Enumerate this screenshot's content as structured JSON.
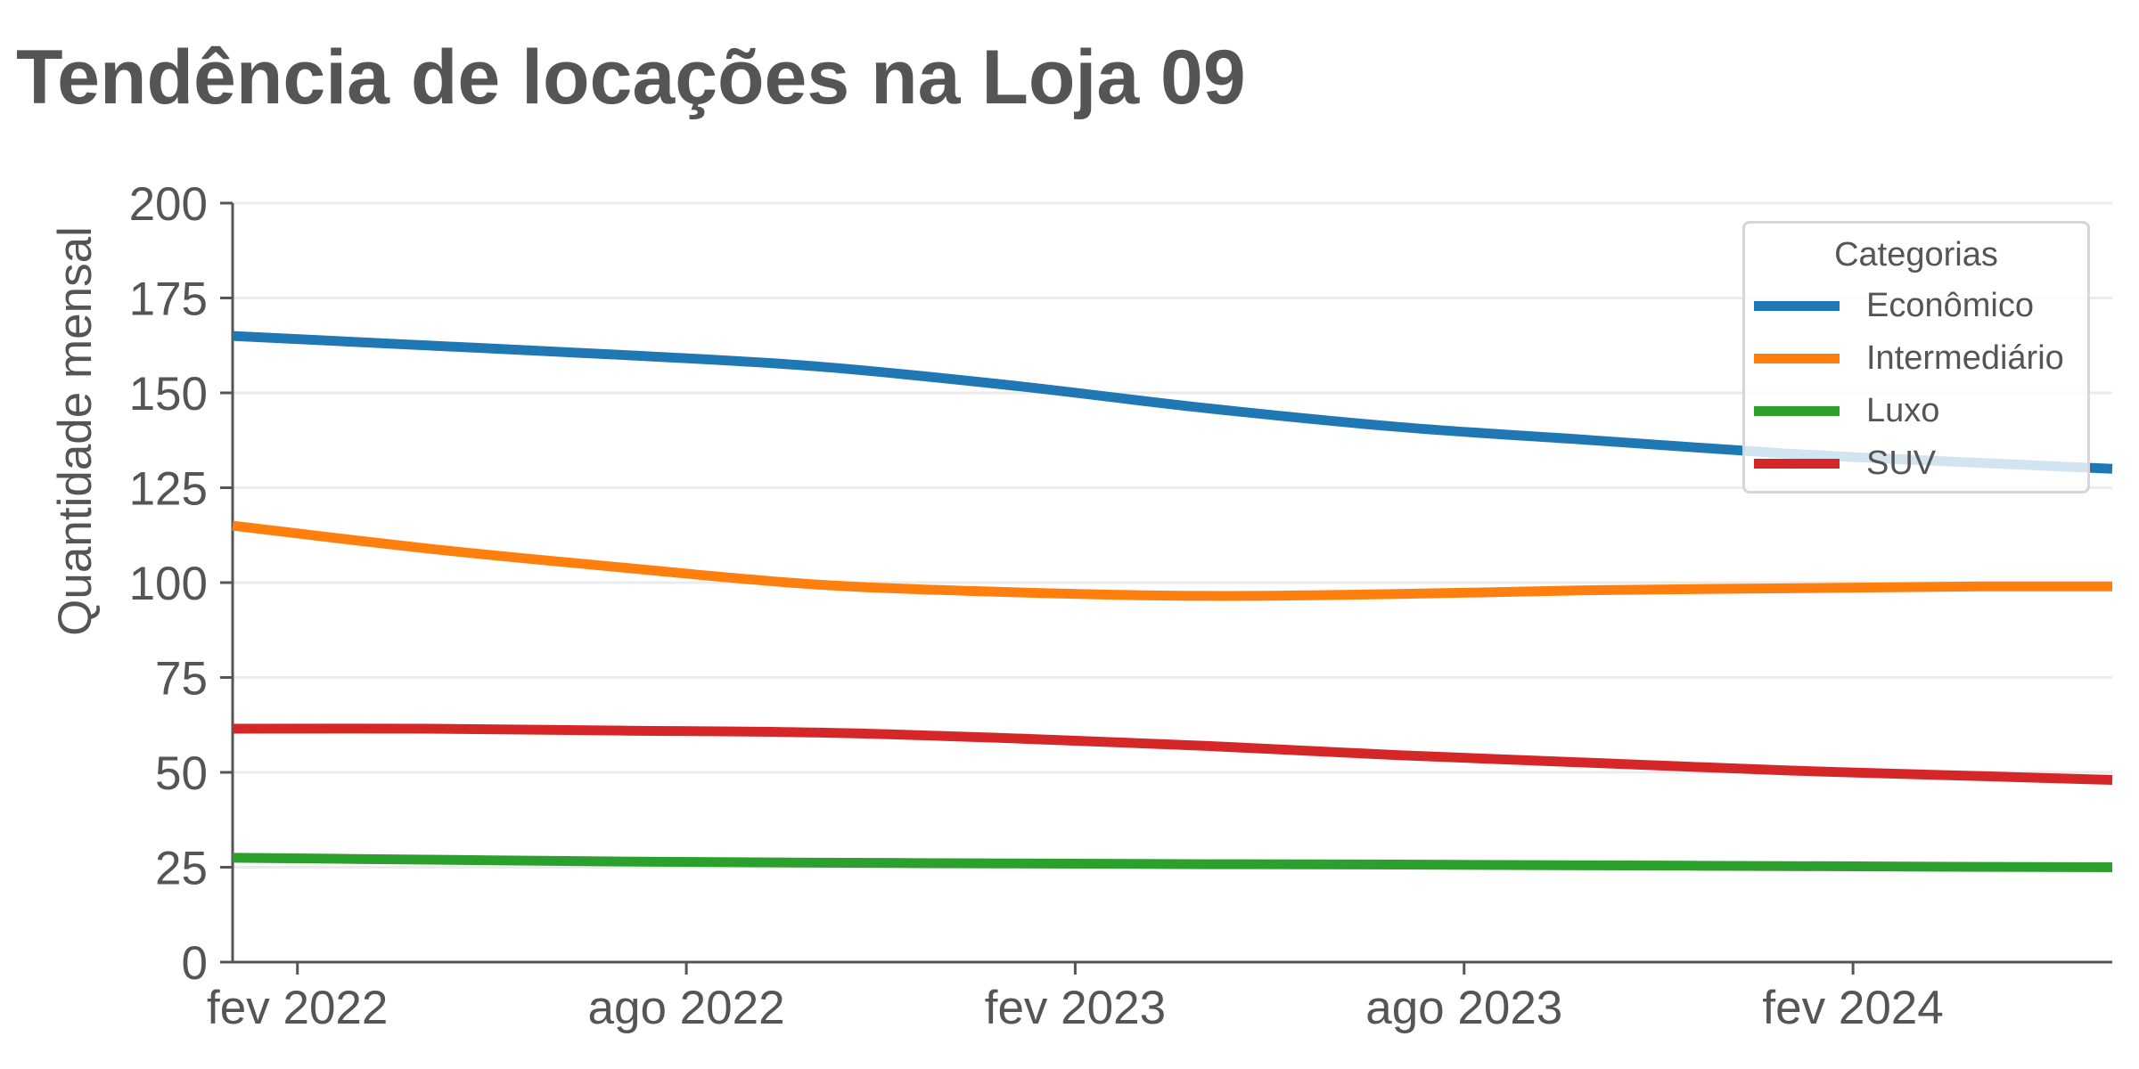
{
  "chart_data": {
    "type": "line",
    "title": "Tendência de locações na Loja 09",
    "xlabel": "",
    "ylabel": "Quantidade mensal",
    "ylim": [
      0,
      200
    ],
    "yticks": [
      0,
      25,
      50,
      75,
      100,
      125,
      150,
      175,
      200
    ],
    "xlim": [
      "2022-01",
      "2024-06"
    ],
    "xticks": [
      {
        "date": "2022-02",
        "label": "fev 2022"
      },
      {
        "date": "2022-08",
        "label": "ago 2022"
      },
      {
        "date": "2023-02",
        "label": "fev 2023"
      },
      {
        "date": "2023-08",
        "label": "ago 2023"
      },
      {
        "date": "2024-02",
        "label": "fev 2024"
      }
    ],
    "grid": "horizontal",
    "legend": {
      "title": "Categorias",
      "placement": "top-right"
    },
    "x": [
      "2022-01",
      "2022-04",
      "2022-07",
      "2022-10",
      "2023-01",
      "2023-04",
      "2023-07",
      "2023-10",
      "2024-01",
      "2024-04",
      "2024-06"
    ],
    "series": [
      {
        "name": "Econômico",
        "color": "#1f77b4",
        "values": [
          165,
          162.5,
          160,
          157,
          152,
          146,
          141,
          137.5,
          134,
          131.5,
          130
        ]
      },
      {
        "name": "Intermediário",
        "color": "#ff7f0e",
        "values": [
          115,
          109,
          104,
          99.5,
          97.5,
          96.5,
          97,
          98,
          98.5,
          99,
          99
        ]
      },
      {
        "name": "Luxo",
        "color": "#2ca02c",
        "values": [
          27.5,
          27,
          26.5,
          26.2,
          26,
          25.8,
          25.7,
          25.5,
          25.3,
          25.1,
          25
        ]
      },
      {
        "name": "SUV",
        "color": "#d62728",
        "values": [
          61.5,
          61.5,
          61,
          60.5,
          59,
          57,
          54.5,
          52.5,
          50.5,
          49,
          48
        ]
      }
    ]
  }
}
